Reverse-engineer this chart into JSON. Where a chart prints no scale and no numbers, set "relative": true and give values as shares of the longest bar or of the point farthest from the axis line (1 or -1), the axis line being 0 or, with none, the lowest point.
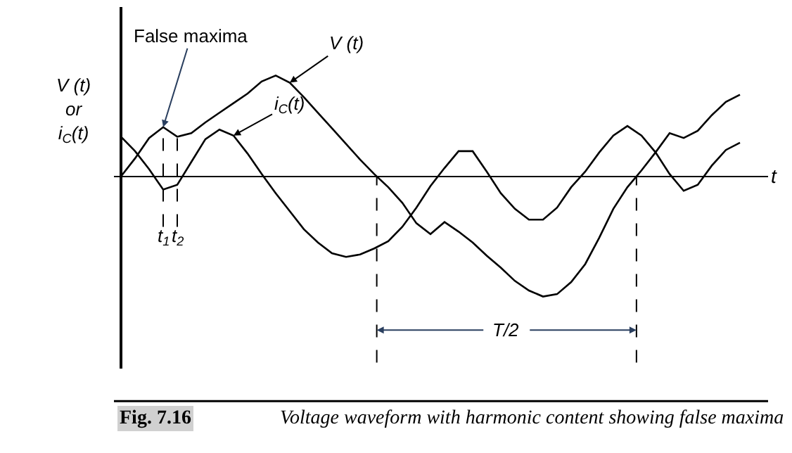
{
  "chart_data": {
    "type": "line",
    "relative": true,
    "xlabel": "t",
    "ylabel": "V (t)\nor\ni$_{C}$(t)",
    "line_style": "solid",
    "categories": [
      null,
      null,
      null,
      null,
      null,
      null,
      null,
      null,
      null,
      null,
      null,
      null,
      null,
      null,
      null,
      null,
      null,
      null,
      null,
      null,
      null,
      null,
      null,
      null,
      null,
      null,
      null,
      null,
      null,
      null,
      null,
      null,
      null,
      null,
      null,
      null,
      null,
      null,
      null,
      null,
      null,
      null,
      null,
      null,
      null
    ],
    "series": [
      {
        "name": "V (t)",
        "color": "#000000",
        "values": [
          0,
          0.15,
          0.32,
          0.41,
          0.33,
          0.36,
          0.45,
          0.53,
          0.61,
          0.69,
          0.79,
          0.84,
          0.78,
          0.66,
          0.53,
          0.4,
          0.27,
          0.14,
          0.02,
          -0.09,
          -0.22,
          -0.39,
          -0.48,
          -0.38,
          -0.46,
          -0.55,
          -0.66,
          -0.76,
          -0.87,
          -0.95,
          -1,
          -0.98,
          -0.88,
          -0.73,
          -0.51,
          -0.27,
          -0.09,
          0.05,
          0.2,
          0.36,
          0.32,
          0.38,
          0.51,
          0.62,
          0.68
        ]
      },
      {
        "name": "i$_{C}$(t)",
        "color": "#000000",
        "values": [
          0.33,
          0.21,
          0.06,
          -0.11,
          -0.07,
          0.12,
          0.31,
          0.39,
          0.34,
          0.19,
          0.02,
          -0.14,
          -0.29,
          -0.44,
          -0.55,
          -0.64,
          -0.67,
          -0.65,
          -0.6,
          -0.54,
          -0.42,
          -0.26,
          -0.08,
          0.07,
          0.21,
          0.21,
          0.04,
          -0.14,
          -0.27,
          -0.36,
          -0.36,
          -0.26,
          -0.09,
          0.04,
          0.2,
          0.34,
          0.42,
          0.34,
          0.2,
          0.02,
          -0.12,
          -0.07,
          0.09,
          0.22,
          0.28
        ]
      }
    ],
    "annotations": [
      "False maxima",
      "t$_{1}$",
      "t$_{2}$",
      "T/2",
      "Fig. 7.16",
      "Voltage waveform with harmonic content showing false maxima"
    ]
  }
}
